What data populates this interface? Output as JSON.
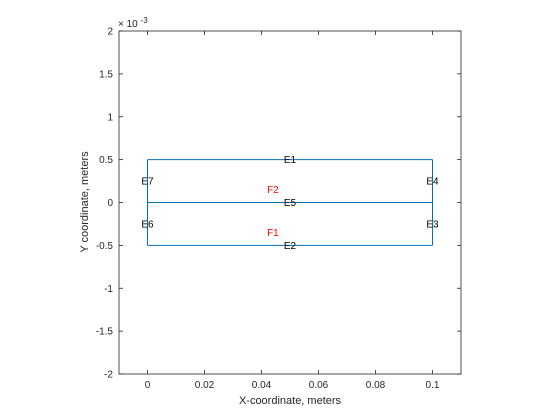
{
  "chart_data": {
    "type": "line",
    "xlabel": "X-coordinate, meters",
    "ylabel": "Y coordinate, meters",
    "xlim": [
      -0.01,
      0.11
    ],
    "ylim": [
      -0.002,
      0.002
    ],
    "x_ticks": [
      0,
      0.02,
      0.04,
      0.06,
      0.08,
      0.1
    ],
    "x_tick_labels": [
      "0",
      "0.02",
      "0.04",
      "0.06",
      "0.08",
      "0.1"
    ],
    "y_ticks": [
      -0.002,
      -0.0015,
      -0.001,
      -0.0005,
      0,
      0.0005,
      0.001,
      0.0015,
      0.002
    ],
    "y_tick_labels": [
      "-2",
      "-1.5",
      "-1",
      "-0.5",
      "0",
      "0.5",
      "1",
      "1.5",
      "2"
    ],
    "y_exponent_label": "× 10",
    "y_exponent_power": "-3",
    "grid": false,
    "geometry_color": "#0072BD",
    "edge_label_color": "#000000",
    "face_label_color": "#FF0000",
    "edges": [
      {
        "name": "E1",
        "points": [
          [
            0,
            0.0005
          ],
          [
            0.1,
            0.0005
          ]
        ],
        "label": "E1",
        "label_pos": [
          0.05,
          0.0005
        ]
      },
      {
        "name": "E2",
        "points": [
          [
            0,
            -0.0005
          ],
          [
            0.1,
            -0.0005
          ]
        ],
        "label": "E2",
        "label_pos": [
          0.05,
          -0.0005
        ]
      },
      {
        "name": "E3",
        "points": [
          [
            0.1,
            -0.0005
          ],
          [
            0.1,
            0
          ]
        ],
        "label": "E3",
        "label_pos": [
          0.1,
          -0.00025
        ]
      },
      {
        "name": "E4",
        "points": [
          [
            0.1,
            0
          ],
          [
            0.1,
            0.0005
          ]
        ],
        "label": "E4",
        "label_pos": [
          0.1,
          0.00025
        ]
      },
      {
        "name": "E5",
        "points": [
          [
            0,
            0
          ],
          [
            0.1,
            0
          ]
        ],
        "label": "E5",
        "label_pos": [
          0.05,
          0
        ]
      },
      {
        "name": "E6",
        "points": [
          [
            0,
            -0.0005
          ],
          [
            0,
            0
          ]
        ],
        "label": "E6",
        "label_pos": [
          0,
          -0.00025
        ]
      },
      {
        "name": "E7",
        "points": [
          [
            0,
            0
          ],
          [
            0,
            0.0005
          ]
        ],
        "label": "E7",
        "label_pos": [
          0,
          0.00025
        ]
      }
    ],
    "faces": [
      {
        "label": "F1",
        "label_pos": [
          0.044,
          -0.00035
        ]
      },
      {
        "label": "F2",
        "label_pos": [
          0.044,
          0.00015
        ]
      }
    ]
  }
}
